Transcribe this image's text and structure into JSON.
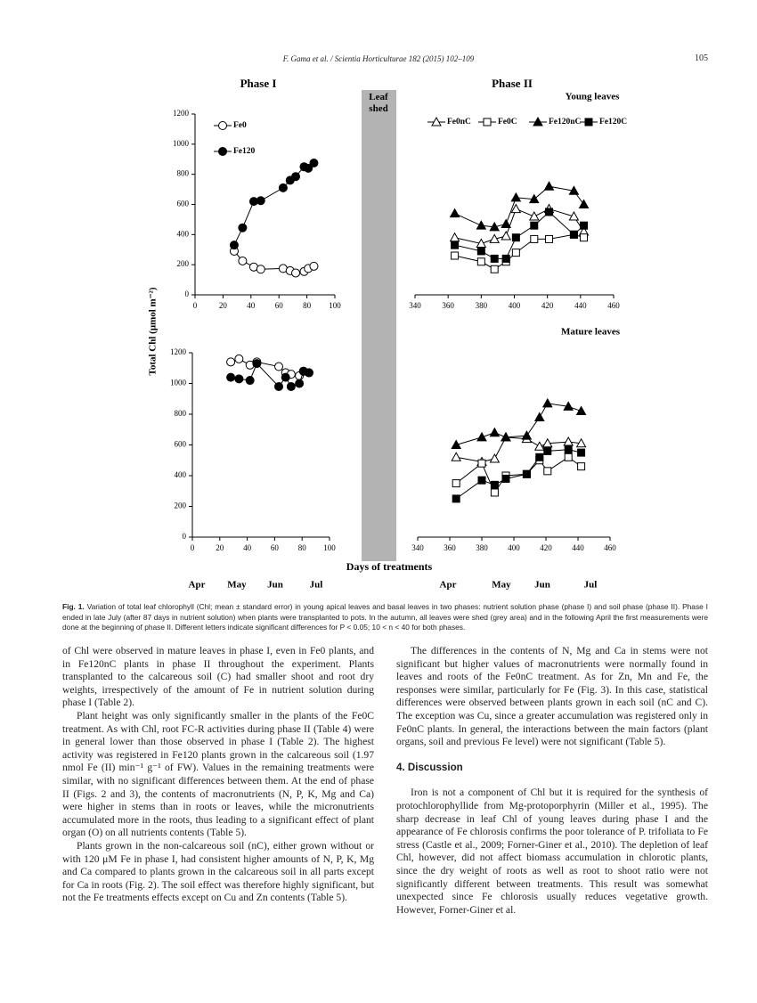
{
  "header": {
    "running_title": "F. Gama et al. / Scientia Horticulturae 182 (2015) 102–109",
    "page_number": "105"
  },
  "figure": {
    "phase_titles": [
      "Phase I",
      "Phase II"
    ],
    "leaf_shed": "Leaf shed",
    "y_label": "Total Chl (μmol m⁻²)",
    "x_label": "Days of treatments",
    "months_phase1": [
      "Apr",
      "May",
      "Jun",
      "Jul"
    ],
    "months_phase2": [
      "Apr",
      "May",
      "Jun",
      "Jul"
    ],
    "panels": [
      {
        "type": "line",
        "legend": true,
        "xlim": [
          0,
          100
        ],
        "xticks": [
          0,
          20,
          40,
          60,
          80,
          100
        ],
        "ylim": [
          0,
          1200
        ],
        "yticks": [
          0,
          200,
          400,
          600,
          800,
          1000,
          1200
        ],
        "x": [
          28,
          34,
          42,
          47,
          63,
          68,
          72,
          78,
          81,
          85
        ],
        "series": [
          {
            "name": "Fe0",
            "marker": "circle",
            "filled": false,
            "values": [
              290,
              225,
              185,
              170,
              175,
              160,
              145,
              155,
              175,
              190
            ]
          },
          {
            "name": "Fe120",
            "marker": "circle",
            "filled": true,
            "values": [
              330,
              445,
              620,
              625,
              710,
              760,
              785,
              850,
              840,
              875
            ]
          }
        ]
      },
      {
        "type": "line",
        "legend": true,
        "title": "Young leaves",
        "xlim": [
          340,
          460
        ],
        "xticks": [
          340,
          360,
          380,
          400,
          420,
          440,
          460
        ],
        "ylim": [
          0,
          1200
        ],
        "x": [
          364,
          380,
          388,
          395,
          401,
          412,
          421,
          436,
          442
        ],
        "series": [
          {
            "name": "Fe0nC",
            "marker": "triangle",
            "filled": false,
            "values": [
              380,
              340,
              370,
              390,
              570,
              520,
              570,
              520,
              420
            ]
          },
          {
            "name": "Fe0C",
            "marker": "square",
            "filled": false,
            "values": [
              260,
              220,
              170,
              220,
              280,
              370,
              370,
              400,
              380
            ]
          },
          {
            "name": "Fe120nC",
            "marker": "triangle",
            "filled": true,
            "values": [
              540,
              460,
              450,
              470,
              645,
              635,
              720,
              690,
              600
            ]
          },
          {
            "name": "Fe120C",
            "marker": "square",
            "filled": true,
            "values": [
              330,
              290,
              240,
              240,
              380,
              460,
              550,
              400,
              460
            ]
          }
        ]
      },
      {
        "type": "line",
        "legend": false,
        "xlim": [
          0,
          100
        ],
        "xticks": [
          0,
          20,
          40,
          60,
          80,
          100
        ],
        "ylim": [
          0,
          1200
        ],
        "yticks": [
          0,
          200,
          400,
          600,
          800,
          1000,
          1200
        ],
        "x": [
          28,
          34,
          42,
          47,
          63,
          68,
          72,
          78,
          81,
          85
        ],
        "series": [
          {
            "name": "Fe0",
            "marker": "circle",
            "filled": false,
            "values": [
              1140,
              1160,
              1120,
              1140,
              1110,
              1070,
              1060,
              1050,
              1080,
              1070
            ]
          },
          {
            "name": "Fe120",
            "marker": "circle",
            "filled": true,
            "values": [
              1040,
              1030,
              1020,
              1130,
              980,
              1040,
              980,
              1000,
              1080,
              1070
            ]
          }
        ]
      },
      {
        "type": "line",
        "legend": false,
        "title": "Mature leaves",
        "xlim": [
          340,
          460
        ],
        "xticks": [
          340,
          360,
          380,
          400,
          420,
          440,
          460
        ],
        "ylim": [
          0,
          1200
        ],
        "x": [
          364,
          380,
          388,
          395,
          408,
          416,
          421,
          434,
          442
        ],
        "series": [
          {
            "name": "Fe0nC",
            "marker": "triangle",
            "filled": false,
            "values": [
              520,
              490,
              510,
              650,
              640,
              590,
              610,
              620,
              610
            ]
          },
          {
            "name": "Fe0C",
            "marker": "square",
            "filled": false,
            "values": [
              350,
              480,
              290,
              400,
              410,
              500,
              430,
              520,
              460
            ]
          },
          {
            "name": "Fe120nC",
            "marker": "triangle",
            "filled": true,
            "values": [
              600,
              650,
              680,
              650,
              660,
              780,
              870,
              850,
              820
            ]
          },
          {
            "name": "Fe120C",
            "marker": "square",
            "filled": true,
            "values": [
              250,
              370,
              340,
              380,
              410,
              520,
              560,
              570,
              550
            ]
          }
        ]
      }
    ]
  },
  "caption": {
    "label": "Fig. 1.",
    "text": "Variation of total leaf chlorophyll (Chl; mean ± standard error) in young apical leaves and basal leaves in two phases: nutrient solution phase (phase I) and soil phase (phase II). Phase I ended in late July (after 87 days in nutrient solution) when plants were transplanted to pots. In the autumn, all leaves were shed (grey area) and in the following April the first measurements were done at the beginning of phase II. Different letters indicate significant differences for P < 0.05; 10 < n < 40 for both phases."
  },
  "left_column": [
    "of Chl were observed in mature leaves in phase I, even in Fe0 plants, and in Fe120nC plants in phase II throughout the experiment. Plants transplanted to the calcareous soil (C) had smaller shoot and root dry weights, irrespectively of the amount of Fe in nutrient solution during phase I (Table 2).",
    "Plant height was only significantly smaller in the plants of the Fe0C treatment. As with Chl, root FC-R activities during phase II (Table 4) were in general lower than those observed in phase I (Table 2). The highest activity was registered in Fe120 plants grown in the calcareous soil (1.97 nmol Fe (II) min⁻¹ g⁻¹ of FW). Values in the remaining treatments were similar, with no significant differences between them. At the end of phase II (Figs. 2 and 3), the contents of macronutrients (N, P, K, Mg and Ca) were higher in stems than in roots or leaves, while the micronutrients accumulated more in the roots, thus leading to a significant effect of plant organ (O) on all nutrients contents (Table 5).",
    "Plants grown in the non-calcareous soil (nC), either grown without or with 120 μM Fe in phase I, had consistent higher amounts of N, P, K, Mg and Ca compared to plants grown in the calcareous soil in all parts except for Ca in roots (Fig. 2). The soil effect was therefore highly significant, but not the Fe treatments effects except on Cu and Zn contents (Table 5)."
  ],
  "right_column": {
    "paragraph_1": "The differences in the contents of N, Mg and Ca in stems were not significant but higher values of macronutrients were normally found in leaves and roots of the Fe0nC treatment. As for Zn, Mn and Fe, the responses were similar, particularly for Fe (Fig. 3). In this case, statistical differences were observed between plants grown in each soil (nC and C). The exception was Cu, since a greater accumulation was registered only in Fe0nC plants. In general, the interactions between the main factors (plant organs, soil and previous Fe level) were not significant (Table 5).",
    "heading": "4. Discussion",
    "paragraph_2": "Iron is not a component of Chl but it is required for the synthesis of protochlorophyllide from Mg-protoporphyrin (Miller et al., 1995). The sharp decrease in leaf Chl of young leaves during phase I and the appearance of Fe chlorosis confirms the poor tolerance of P. trifoliata to Fe stress (Castle et al., 2009; Forner-Giner et al., 2010). The depletion of leaf Chl, however, did not affect biomass accumulation in chlorotic plants, since the dry weight of roots as well as root to shoot ratio were not significantly different between treatments. This result was somewhat unexpected since Fe chlorosis usually reduces vegetative growth. However, Forner-Giner et al."
  }
}
